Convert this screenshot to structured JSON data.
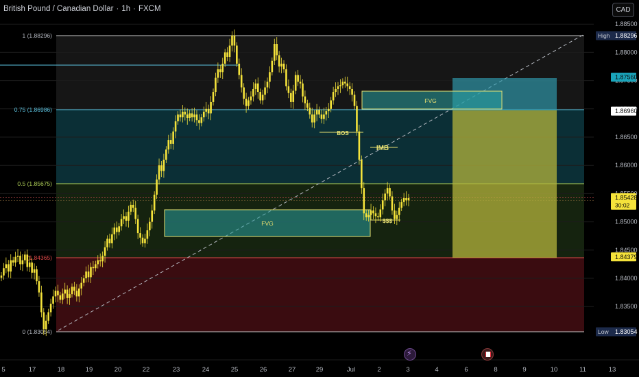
{
  "header": {
    "symbol_name": "British Pound / Canadian Dollar",
    "interval": "1h",
    "source": "FXCM",
    "currency_button": "CAD"
  },
  "colors": {
    "background": "#000000",
    "candle": "#f5e33b",
    "grid_line": "#1c1c1c",
    "fib_line_cyan": "#5ec8e6",
    "fib_line_green": "#b5d65a",
    "fib_line_red": "#e04848",
    "zone_teal": "#0b2f36",
    "zone_green": "#15230f",
    "zone_red": "#3a0c10",
    "zone_grey": "#161616",
    "fvg_fill": "#2aa0a0",
    "target_box": "#31a0b4",
    "stop_box": "#b4b43c"
  },
  "chart_data": {
    "type": "candlestick",
    "title": "British Pound / Canadian Dollar · 1h · FXCM",
    "y_axis": {
      "side": "right",
      "ticks": [
        "1.88500",
        "1.88000",
        "1.87500",
        "1.87000",
        "1.86500",
        "1.86000",
        "1.85500",
        "1.85000",
        "1.84500",
        "1.84000",
        "1.83500"
      ],
      "ylim": [
        1.826,
        1.889
      ]
    },
    "x_axis": {
      "ticks": [
        "5",
        "17",
        "18",
        "19",
        "20",
        "22",
        "23",
        "24",
        "25",
        "26",
        "27",
        "29",
        "Jul",
        "2",
        "3",
        "4",
        "6",
        "8",
        "9",
        "10",
        "11",
        "13"
      ]
    },
    "fibonacci": [
      {
        "label": "1 (1.88296)",
        "price": 1.88296
      },
      {
        "label": "0.75 (1.86986)",
        "price": 1.86986
      },
      {
        "label": "0.5 (1.85675)",
        "price": 1.85675
      },
      {
        "label": "(1.84365)",
        "price": 1.84365
      },
      {
        "label": "0 (1.83054)",
        "price": 1.83054
      }
    ],
    "price_labels": [
      {
        "prefix": "High",
        "value": "1.88296"
      },
      {
        "prefix": "",
        "value": "1.87560"
      },
      {
        "prefix": "",
        "value": "1.86960"
      },
      {
        "prefix": "",
        "value": "1.85428",
        "sub": "30:02"
      },
      {
        "prefix": "",
        "value": "1.84379"
      },
      {
        "prefix": "Low",
        "value": "1.83054"
      }
    ],
    "annotations": [
      "FVG",
      "BOS",
      "IMB",
      "FVG",
      "$$$"
    ],
    "closes": [
      1.8405,
      1.8418,
      1.8425,
      1.8412,
      1.8432,
      1.8428,
      1.8438,
      1.844,
      1.8425,
      1.8432,
      1.8442,
      1.842,
      1.8428,
      1.841,
      1.8416,
      1.8395,
      1.8375,
      1.834,
      1.831,
      1.8325,
      1.834,
      1.8355,
      1.8368,
      1.8378,
      1.837,
      1.8362,
      1.8373,
      1.838,
      1.8365,
      1.8372,
      1.8385,
      1.8378,
      1.8368,
      1.8382,
      1.8392,
      1.84,
      1.8412,
      1.8402,
      1.842,
      1.8418,
      1.8425,
      1.8432,
      1.843,
      1.844,
      1.8455,
      1.847,
      1.8462,
      1.8478,
      1.849,
      1.8482,
      1.8492,
      1.8505,
      1.851,
      1.8502,
      1.8518,
      1.853,
      1.8525,
      1.8505,
      1.848,
      1.8472,
      1.8462,
      1.847,
      1.8485,
      1.85,
      1.852,
      1.8548,
      1.8575,
      1.86,
      1.859,
      1.861,
      1.8628,
      1.8645,
      1.8638,
      1.866,
      1.8678,
      1.869,
      1.8685,
      1.8695,
      1.869,
      1.8684,
      1.8692,
      1.8685,
      1.869,
      1.868,
      1.8675,
      1.8685,
      1.8695,
      1.87,
      1.8692,
      1.8712,
      1.873,
      1.8755,
      1.877,
      1.8765,
      1.878,
      1.88,
      1.8792,
      1.8812,
      1.883,
      1.8812,
      1.878,
      1.876,
      1.8738,
      1.8718,
      1.8705,
      1.8715,
      1.8722,
      1.8735,
      1.8745,
      1.873,
      1.8715,
      1.8725,
      1.8738,
      1.8748,
      1.8765,
      1.8785,
      1.8815,
      1.8795,
      1.8775,
      1.878,
      1.877,
      1.874,
      1.8728,
      1.8712,
      1.8732,
      1.876,
      1.8748,
      1.8745,
      1.8722,
      1.871,
      1.8702,
      1.869,
      1.8676,
      1.869,
      1.8698,
      1.869,
      1.8682,
      1.869,
      1.8696,
      1.87,
      1.8715,
      1.873,
      1.8735,
      1.874,
      1.8742,
      1.8748,
      1.8745,
      1.874,
      1.8735,
      1.8725,
      1.8705,
      1.866,
      1.861,
      1.856,
      1.8515,
      1.8508,
      1.8512,
      1.852,
      1.8515,
      1.851,
      1.8508,
      1.8522,
      1.8538,
      1.855,
      1.856,
      1.8545,
      1.852,
      1.8505,
      1.8512,
      1.8525,
      1.8535,
      1.8542,
      1.8538,
      1.8542
    ],
    "current_price": 1.85428
  }
}
